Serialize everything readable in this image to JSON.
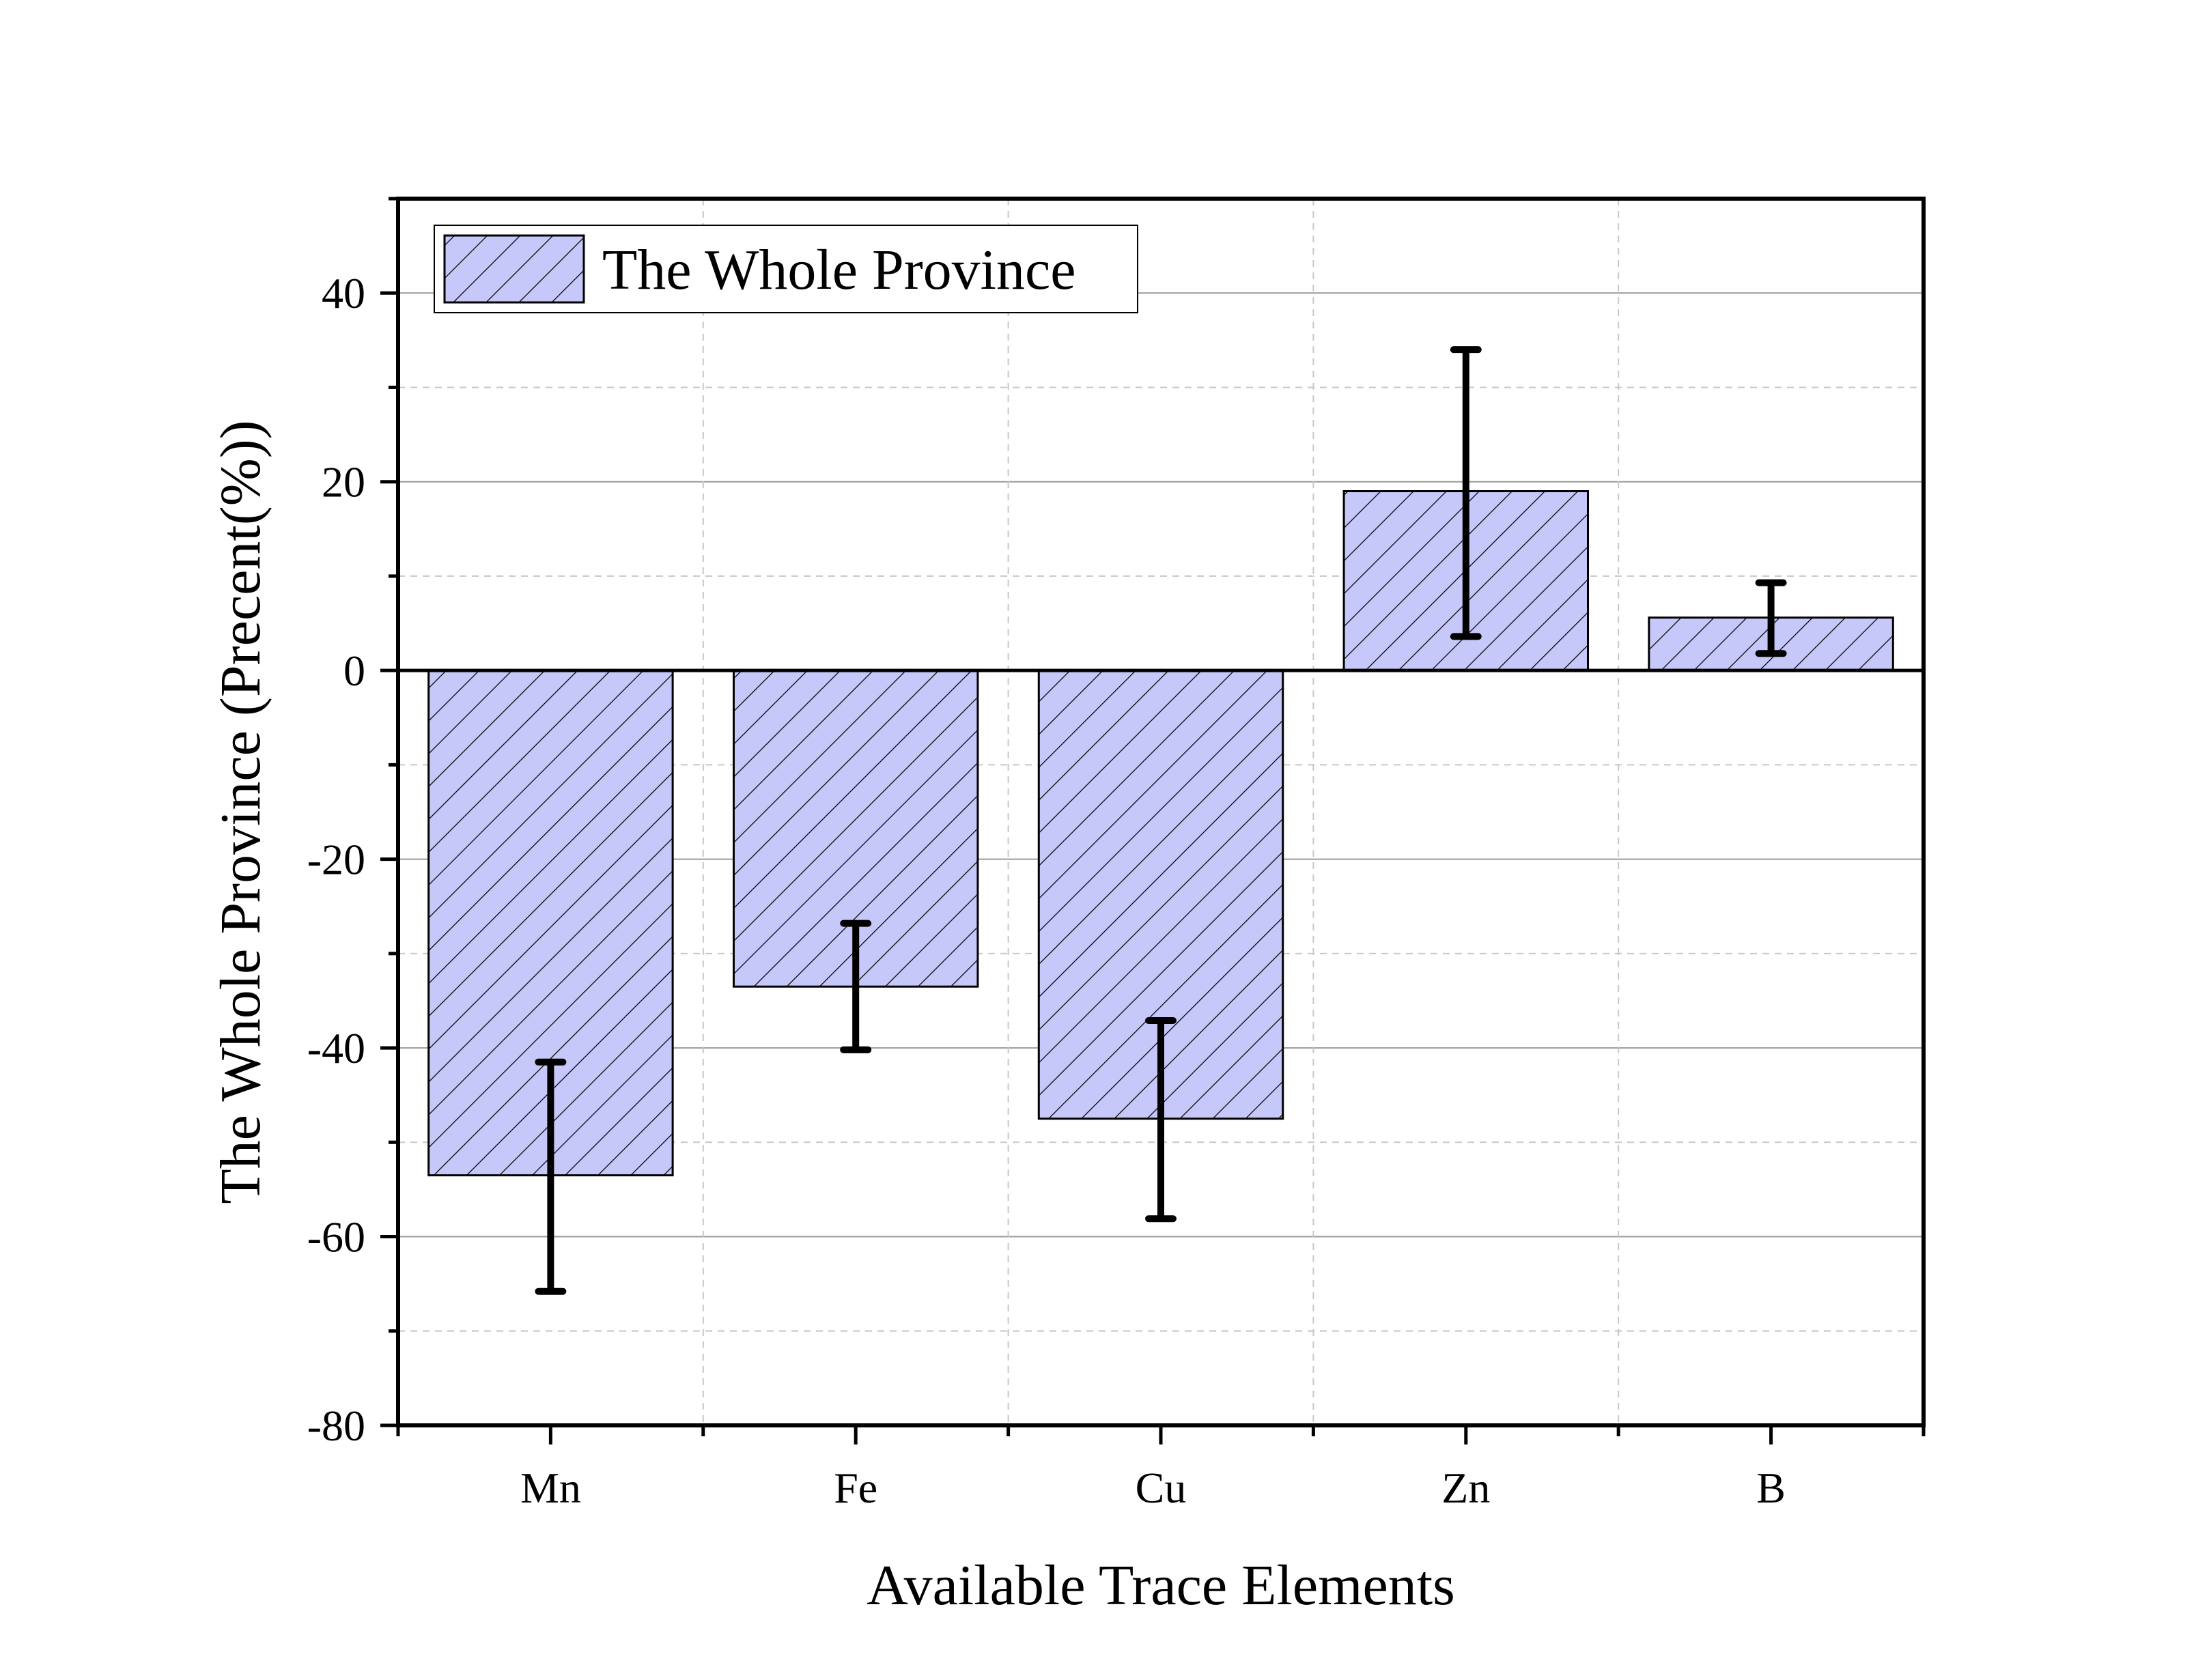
{
  "chart_data": {
    "type": "bar",
    "title": "",
    "categories": [
      "Mn",
      "Fe",
      "Cu",
      "Zn",
      "B"
    ],
    "series": [
      {
        "name": "The Whole Province",
        "values": [
          -53.5,
          -33.5,
          -47.5,
          19.0,
          5.6
        ],
        "error_upper": [
          -41.5,
          -26.8,
          -37.1,
          34.0,
          9.3
        ],
        "error_lower": [
          -65.8,
          -40.2,
          -58.1,
          3.6,
          1.8
        ]
      }
    ],
    "xlabel": "Available Trace Elements",
    "ylabel": "The Whole Province (Precent(%))",
    "ylim": [
      -80,
      50
    ],
    "yticks": [
      -80,
      -60,
      -40,
      -20,
      0,
      20,
      40
    ],
    "grid": true,
    "legend_position": "top-left",
    "bar_fill_color": "#c5c8f8",
    "bar_edge_color": "#000000",
    "bar_hatch": "diagonal"
  }
}
